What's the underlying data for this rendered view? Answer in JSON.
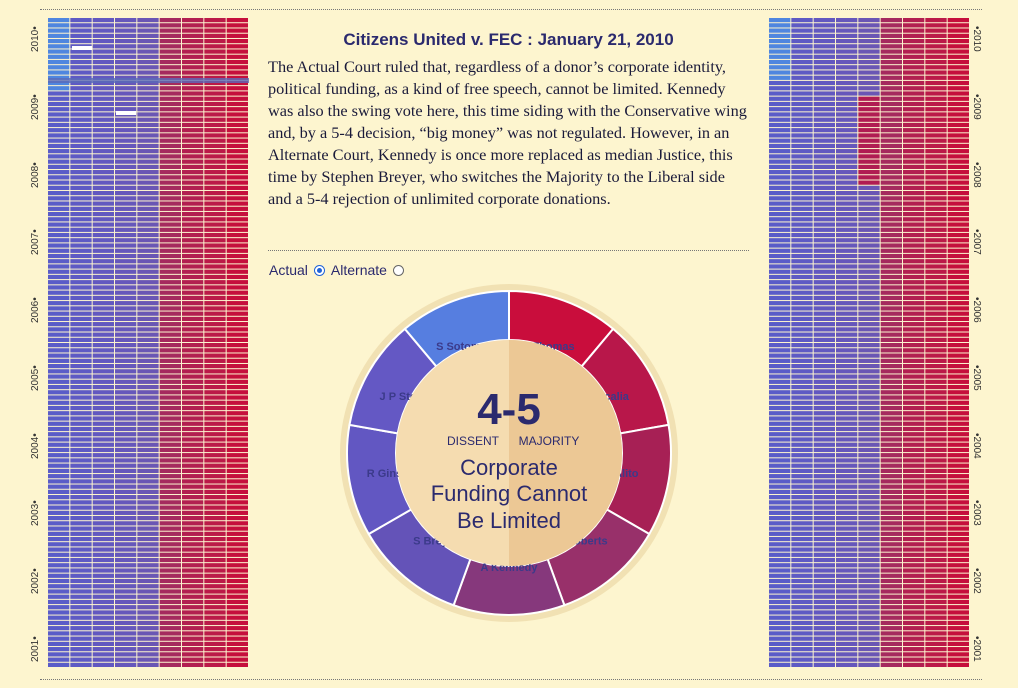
{
  "years": [
    "2001",
    "2002",
    "2003",
    "2004",
    "2005",
    "2006",
    "2007",
    "2008",
    "2009",
    "2010"
  ],
  "case": {
    "title": "Citizens United v. FEC : January 21, 2010",
    "description": "The Actual Court ruled that, regardless of a donor’s corporate identity, political funding, as a kind of free speech, cannot be limited. Kennedy was also the swing vote here, this time siding with the Conservative wing and, by a 5-4 decision, “big money” was not regulated. However, in an Alternate Court, Kennedy is once more replaced as median Justice, this time by Stephen Breyer, who switches the Majority to the Liberal side and a 5-4 rejection of unlimited corporate donations."
  },
  "toggle": {
    "actual_label": "Actual",
    "alternate_label": "Alternate",
    "selected": "actual"
  },
  "wheel": {
    "score": "4-5",
    "dissent_label": "DISSENT",
    "majority_label": "MAJORITY",
    "ruling_lines": [
      "Corporate",
      "Funding Cannot",
      "Be Limited"
    ],
    "justices": [
      {
        "name": "C Thomas",
        "color": "#c90d3c"
      },
      {
        "name": "A Scalia",
        "color": "#b8174a"
      },
      {
        "name": "S Alito",
        "color": "#a72055"
      },
      {
        "name": "J Roberts",
        "color": "#98306a"
      },
      {
        "name": "A Kennedy",
        "color": "#86387c"
      },
      {
        "name": "S Breyer",
        "color": "#6453b8"
      },
      {
        "name": "R Ginsburg",
        "color": "#6257c2"
      },
      {
        "name": "J P Stevens",
        "color": "#6458c4"
      },
      {
        "name": "S Sotomayor",
        "color": "#567ee0"
      }
    ]
  },
  "colors": {
    "liberal": "#5d5cc9",
    "conservative": "#c5113f",
    "sotomayor": "#4d88e2",
    "title": "#2b2a6e",
    "background": "#fdf5cf"
  }
}
